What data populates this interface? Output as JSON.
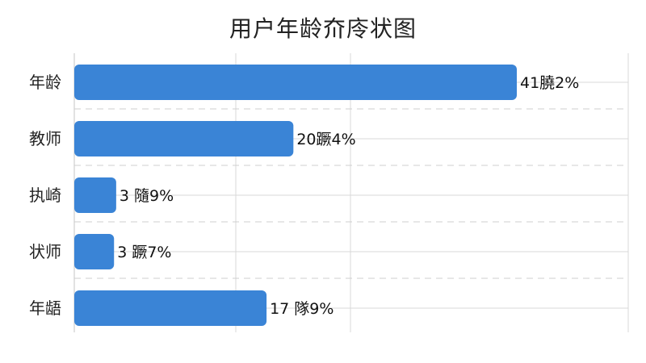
{
  "chart_data": {
    "type": "bar",
    "orientation": "horizontal",
    "title": "用户年龄夼㡵状图",
    "xlabel": "",
    "ylabel": "",
    "categories": [
      "年龄",
      "教师",
      "执崎",
      "状师",
      "年龉"
    ],
    "values": [
      41.2,
      20.4,
      3.9,
      3.7,
      17.9
    ],
    "data_labels": [
      "41膮2%",
      "20蹶4%",
      "3 隨9%",
      "3 蹶7%",
      "17 隊9%"
    ],
    "grid": true,
    "legend": "none",
    "colors": {
      "bar": "#3a84d6",
      "grid": "#d8d8d8",
      "separator": "#cfcfcf"
    }
  }
}
